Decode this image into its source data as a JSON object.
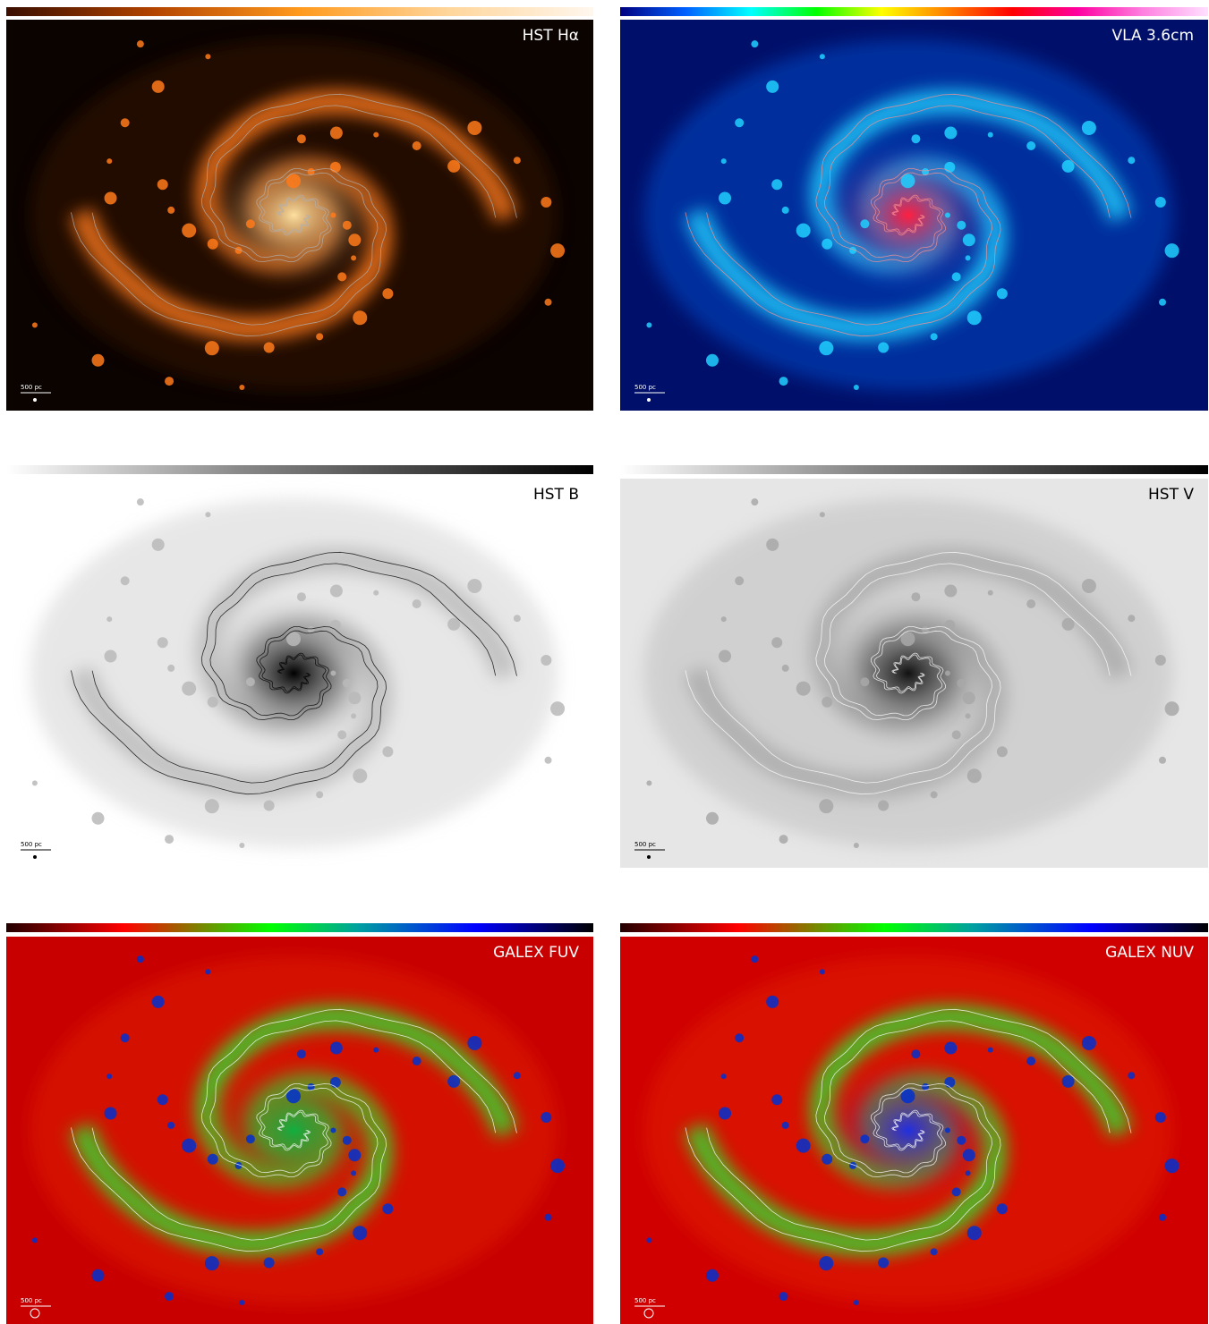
{
  "panels": [
    {
      "label": "HST Hα",
      "scale_label": "500 pc"
    },
    {
      "label": "VLA 3.6cm",
      "scale_label": "500 pc"
    },
    {
      "label": "HST B",
      "scale_label": "500 pc"
    },
    {
      "label": "HST V",
      "scale_label": "500 pc"
    },
    {
      "label": "GALEX FUV",
      "scale_label": "500 pc"
    },
    {
      "label": "GALEX NUV",
      "scale_label": "500 pc"
    }
  ]
}
